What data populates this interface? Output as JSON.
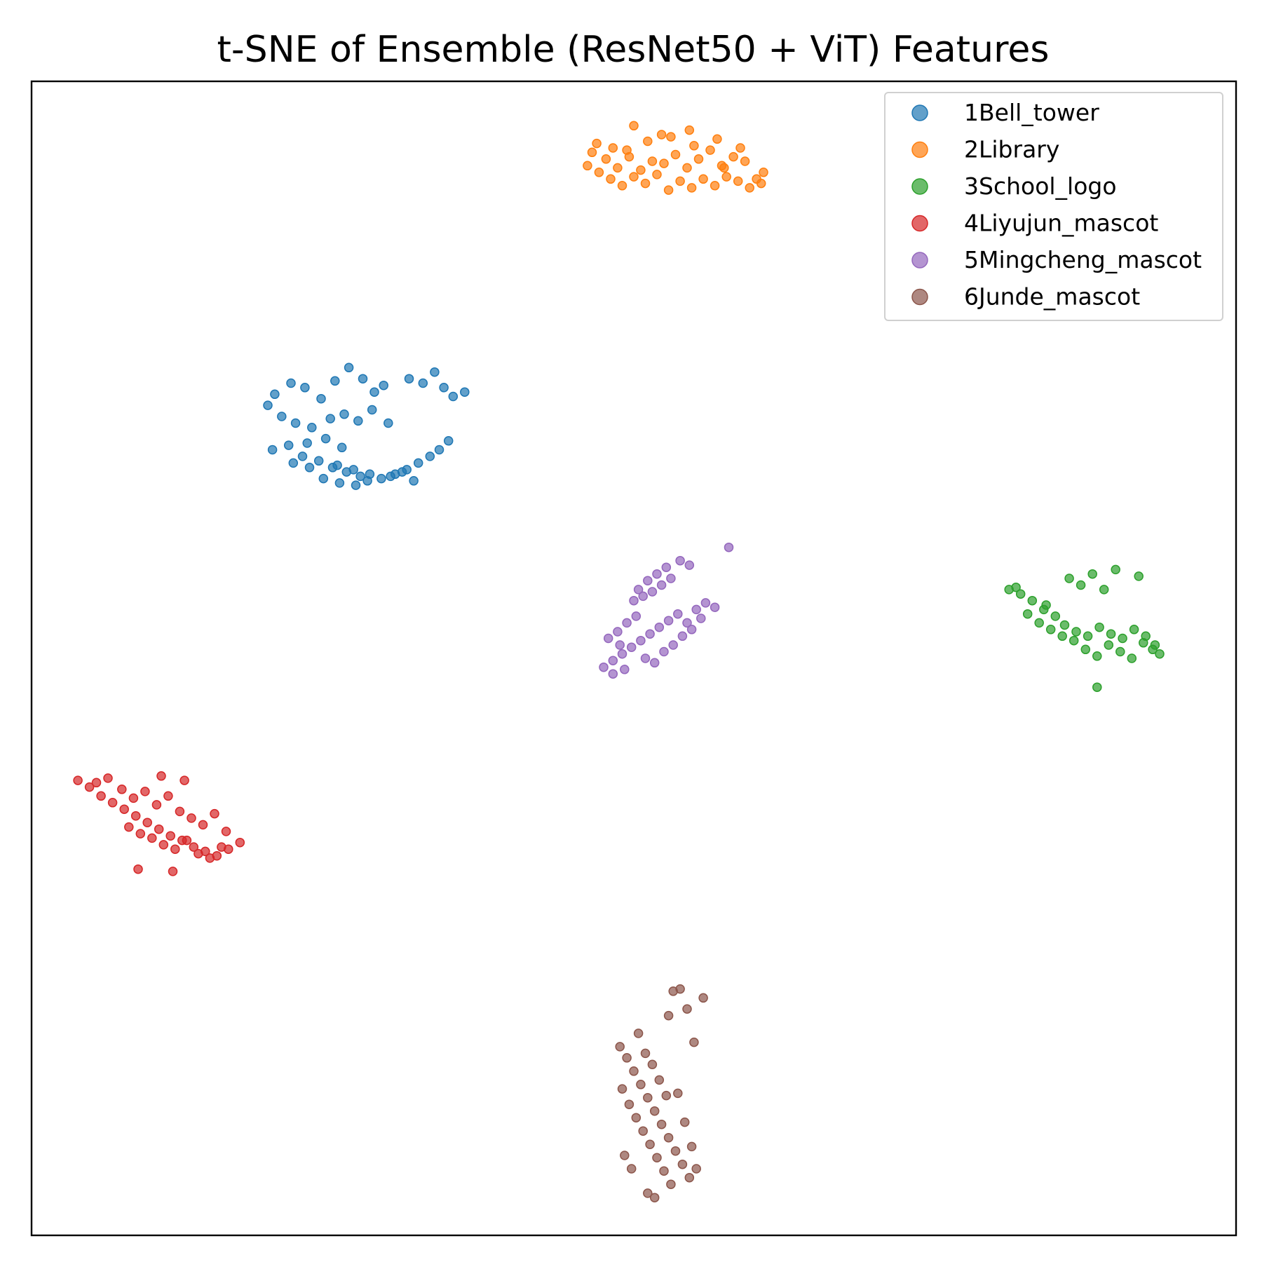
{
  "chart_data": {
    "type": "scatter",
    "title": "t-SNE of Ensemble (ResNet50 + ViT) Features",
    "xlabel": "",
    "ylabel": "",
    "xlim": [
      -26,
      26
    ],
    "ylim": [
      -26,
      26
    ],
    "ticks": "none",
    "grid": false,
    "legend_position": "upper right",
    "series": [
      {
        "name": "1Bell_tower",
        "color": "#1f77b4",
        "x": [
          -15.8,
          -15.5,
          -14.8,
          -14.2,
          -13.5,
          -12.9,
          -12.3,
          -11.7,
          -11.2,
          -10.8,
          -15.2,
          -14.6,
          -13.9,
          -13.1,
          -12.5,
          -11.9,
          -11.3,
          -10.6,
          -15.6,
          -14.9,
          -14.3,
          -13.6,
          -12.8,
          -12.1,
          -11.4,
          -10.5,
          -10.0,
          -9.5,
          -14.7,
          -14.0,
          -13.4,
          -12.7,
          -12.0,
          -11.5,
          -10.9,
          -10.3,
          -9.8,
          -9.3,
          -8.8,
          -8.4,
          -8.0,
          -14.1,
          -13.3,
          -12.6,
          -13.0,
          -12.4,
          -11.8,
          -9.7,
          -9.1,
          -8.6,
          -8.2,
          -7.8,
          -7.3
        ],
        "y": [
          11.4,
          11.9,
          12.4,
          12.2,
          11.7,
          12.5,
          13.1,
          12.6,
          12.0,
          12.3,
          10.9,
          10.6,
          10.4,
          10.8,
          11.0,
          10.7,
          11.2,
          10.6,
          9.4,
          9.6,
          9.1,
          8.9,
          8.7,
          8.5,
          8.3,
          8.2,
          8.4,
          8.0,
          8.8,
          8.6,
          8.1,
          7.9,
          7.8,
          8.0,
          8.1,
          8.3,
          8.5,
          8.8,
          9.1,
          9.4,
          9.8,
          9.7,
          9.9,
          9.5,
          8.6,
          8.4,
          8.2,
          12.6,
          12.4,
          12.9,
          12.2,
          11.8,
          12.0
        ]
      },
      {
        "name": "2Library",
        "color": "#ff7f0e",
        "x": [
          -2.0,
          -1.5,
          -1.0,
          -0.5,
          0.0,
          0.5,
          1.0,
          1.5,
          2.0,
          2.5,
          3.0,
          3.5,
          4.0,
          4.5,
          5.0,
          5.5,
          -1.8,
          -1.2,
          -0.7,
          -0.2,
          0.3,
          0.8,
          1.3,
          1.8,
          2.3,
          2.8,
          3.3,
          3.8,
          4.3,
          4.8,
          5.3,
          -1.6,
          -0.9,
          -0.3,
          0.6,
          1.6,
          2.6,
          3.6,
          4.6,
          5.6,
          0.0,
          1.2,
          2.4,
          3.9
        ],
        "y": [
          22.2,
          21.9,
          21.6,
          21.3,
          21.7,
          21.4,
          21.8,
          21.1,
          21.5,
          21.2,
          21.6,
          21.3,
          21.7,
          21.5,
          21.2,
          21.4,
          22.8,
          22.5,
          22.1,
          22.6,
          22.0,
          22.4,
          22.3,
          22.7,
          22.1,
          22.5,
          22.9,
          22.2,
          22.6,
          22.4,
          21.6,
          23.2,
          23.0,
          22.9,
          23.3,
          23.5,
          23.1,
          23.4,
          23.0,
          21.9,
          24.0,
          23.6,
          23.8,
          22.1
        ]
      },
      {
        "name": "3School_logo",
        "color": "#2ca02c",
        "x": [
          16.2,
          16.7,
          17.2,
          17.7,
          18.2,
          18.6,
          19.1,
          19.6,
          20.1,
          20.6,
          21.1,
          21.6,
          22.1,
          22.5,
          17.0,
          17.5,
          18.0,
          18.5,
          19.0,
          19.5,
          20.0,
          20.5,
          21.0,
          21.5,
          22.0,
          22.4,
          16.5,
          18.8,
          19.8,
          20.8,
          21.8,
          17.8,
          19.3,
          20.3,
          22.7,
          20.0
        ],
        "y": [
          3.1,
          2.9,
          2.6,
          2.2,
          1.9,
          1.5,
          1.2,
          1.0,
          1.4,
          1.1,
          0.9,
          1.3,
          1.0,
          0.6,
          2.0,
          1.6,
          1.3,
          1.0,
          0.8,
          0.4,
          0.1,
          0.6,
          0.3,
          0.0,
          0.7,
          0.4,
          3.2,
          3.6,
          3.8,
          4.0,
          3.7,
          2.4,
          3.3,
          3.1,
          0.2,
          -1.3
        ]
      },
      {
        "name": "4Liyujun_mascot",
        "color": "#d62728",
        "x": [
          -24.0,
          -23.5,
          -23.0,
          -22.5,
          -22.0,
          -21.5,
          -21.0,
          -20.5,
          -20.0,
          -19.5,
          -19.0,
          -18.5,
          -18.0,
          -17.5,
          -17.0,
          -23.2,
          -22.7,
          -22.1,
          -21.6,
          -21.1,
          -20.6,
          -20.1,
          -19.6,
          -19.1,
          -18.6,
          -18.1,
          -17.6,
          -21.8,
          -21.3,
          -20.8,
          -20.3,
          -19.8,
          -19.3,
          -18.8,
          -18.3,
          -17.8,
          -20.4,
          -19.4,
          -21.4,
          -19.9
        ],
        "y": [
          -5.5,
          -5.8,
          -6.2,
          -6.5,
          -6.8,
          -7.1,
          -7.4,
          -7.7,
          -8.0,
          -8.2,
          -8.5,
          -8.7,
          -8.9,
          -8.6,
          -8.3,
          -5.6,
          -5.4,
          -5.9,
          -6.3,
          -6.0,
          -6.6,
          -6.2,
          -6.9,
          -7.2,
          -7.5,
          -7.0,
          -7.8,
          -7.6,
          -7.9,
          -8.1,
          -8.4,
          -8.6,
          -8.2,
          -8.8,
          -9.0,
          -8.5,
          -5.3,
          -5.5,
          -9.5,
          -9.6
        ]
      },
      {
        "name": "5Mingcheng_mascot",
        "color": "#9467bd",
        "x": [
          -1.3,
          -0.9,
          -0.5,
          -0.1,
          0.3,
          0.7,
          1.1,
          1.5,
          1.9,
          2.3,
          2.7,
          3.1,
          3.5,
          0.5,
          0.9,
          1.3,
          1.7,
          2.1,
          2.5,
          2.9,
          0.2,
          0.6,
          1.0,
          1.4,
          -1.1,
          -0.7,
          -0.3,
          0.1,
          -0.9,
          -0.4,
          0.4,
          0.8,
          1.2,
          1.6,
          2.0,
          2.4,
          -0.6,
          0.0,
          4.1
        ],
        "y": [
          -0.4,
          -0.1,
          0.2,
          0.5,
          0.8,
          1.1,
          1.4,
          1.7,
          2.0,
          1.6,
          2.2,
          2.5,
          2.3,
          0.0,
          -0.2,
          0.3,
          0.6,
          1.0,
          1.3,
          1.8,
          3.1,
          3.5,
          3.8,
          4.1,
          0.9,
          1.2,
          1.6,
          1.9,
          -0.7,
          -0.5,
          2.8,
          3.0,
          3.3,
          3.6,
          4.4,
          4.2,
          0.6,
          2.6,
          5.0
        ]
      },
      {
        "name": "6Junde_mascot",
        "color": "#8c564b",
        "x": [
          -0.6,
          -0.3,
          0.0,
          0.3,
          0.6,
          0.9,
          1.2,
          1.5,
          1.8,
          2.1,
          2.4,
          2.7,
          -0.5,
          -0.2,
          0.1,
          0.4,
          0.7,
          1.0,
          1.3,
          1.6,
          1.9,
          2.2,
          2.5,
          0.2,
          0.5,
          0.8,
          1.1,
          1.4,
          -0.4,
          -0.1,
          0.6,
          0.9,
          1.7,
          2.0,
          2.3,
          3.0,
          2.6,
          1.5
        ],
        "y": [
          -17.5,
          -18.0,
          -18.6,
          -19.2,
          -19.8,
          -20.4,
          -21.0,
          -21.6,
          -22.2,
          -22.8,
          -23.4,
          -23.0,
          -19.4,
          -20.1,
          -20.7,
          -21.3,
          -21.9,
          -22.5,
          -23.1,
          -23.7,
          -19.6,
          -20.9,
          -22.0,
          -16.9,
          -17.8,
          -18.3,
          -19.0,
          -19.7,
          -22.4,
          -23.0,
          -24.1,
          -24.3,
          -15.0,
          -14.9,
          -15.8,
          -15.3,
          -17.3,
          -16.1
        ]
      }
    ]
  }
}
